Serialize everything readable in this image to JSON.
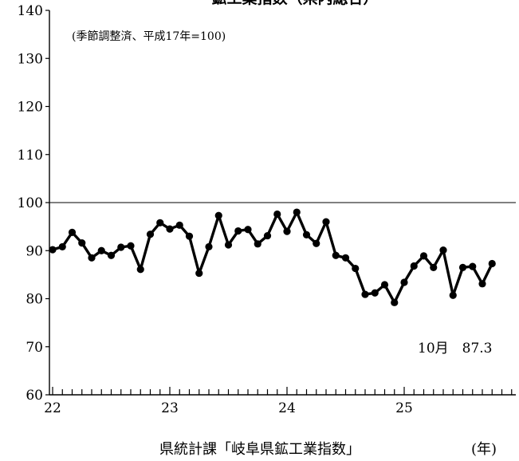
{
  "chart_data": {
    "type": "line",
    "title": "鉱工業指数（県内総合）",
    "note": "(季節調整済、平成17年=100)",
    "source": "県統計課「岐阜県鉱工業指数」",
    "xunit": "(年)",
    "xlabels": [
      "22",
      "23",
      "24",
      "25"
    ],
    "ylim": [
      60,
      140
    ],
    "yticks": [
      "60",
      "70",
      "80",
      "90",
      "100",
      "110",
      "120",
      "130",
      "140"
    ],
    "reference_line": 100,
    "annotation": "10月　87.3",
    "series": [
      {
        "values": [
          90.2,
          90.8,
          93.8,
          91.6,
          88.5,
          90.0,
          89.0,
          90.7,
          91.0,
          86.1,
          93.4,
          95.8,
          94.5,
          95.3,
          93.0,
          85.3,
          90.8,
          97.3,
          91.2,
          94.1,
          94.4,
          91.4,
          93.1,
          97.6,
          94.0,
          98.0,
          93.3,
          91.5,
          96.0,
          89.0,
          88.5,
          86.3,
          80.9,
          81.2,
          82.9,
          79.2,
          83.4,
          86.8,
          88.9,
          86.5,
          90.1,
          80.7,
          86.5,
          86.7,
          83.1,
          87.3
        ]
      }
    ]
  }
}
